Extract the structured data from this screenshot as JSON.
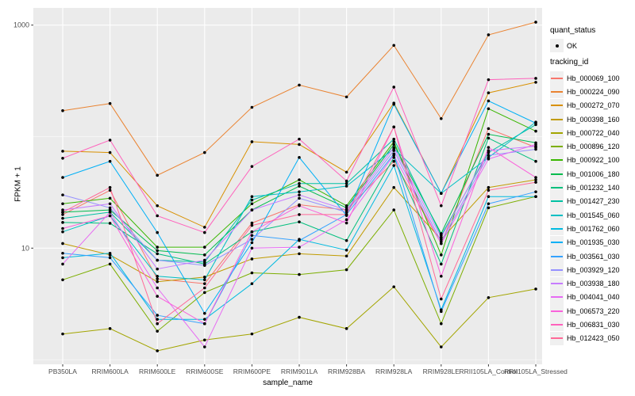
{
  "chart_data": {
    "type": "line",
    "title": "",
    "xlabel": "sample_name",
    "ylabel": "FPKM + 1",
    "y_scale": "log10",
    "ylim": [
      0.9,
      1430
    ],
    "y_ticks": [
      10,
      1000
    ],
    "y_tick_labels": [
      "10",
      "1000"
    ],
    "y_minor_gridlines": [
      1,
      100
    ],
    "grid": "on",
    "panel_background": "#EBEBEB",
    "gridline_color": "#FFFFFF",
    "point_color": "#000000",
    "categories": [
      "PB350LA",
      "RRIM600LA",
      "RRIM600LE",
      "RRIM600SE",
      "RRIM600PE",
      "RRIM901LA",
      "RRIM928BA",
      "RRIM928LA",
      "RRIM928LE",
      "RRII105LA_Control",
      "RRII105LA_Stressed"
    ],
    "series": [
      {
        "name": "Hb_000069_100",
        "color": "#F8766D",
        "values": [
          20,
          33,
          5.3,
          4.8,
          16.8,
          24.5,
          22,
          60,
          11,
          118,
          80
        ]
      },
      {
        "name": "Hb_000224_090",
        "color": "#EA8331",
        "values": [
          171,
          198,
          45,
          72,
          183,
          290,
          227,
          658,
          145,
          818,
          1063
        ]
      },
      {
        "name": "Hb_000272_070",
        "color": "#D89000",
        "values": [
          74,
          72,
          24,
          15.4,
          90,
          85,
          48,
          200,
          31,
          247,
          307
        ]
      },
      {
        "name": "Hb_000398_160",
        "color": "#C09B00",
        "values": [
          11,
          8.7,
          5.0,
          5.5,
          8.0,
          8.9,
          8.5,
          35,
          12,
          35,
          41
        ]
      },
      {
        "name": "Hb_000722_040",
        "color": "#A3A500",
        "values": [
          1.7,
          1.9,
          1.2,
          1.5,
          1.7,
          2.4,
          1.9,
          4.5,
          1.3,
          3.6,
          4.3
        ]
      },
      {
        "name": "Hb_000896_120",
        "color": "#7CAE00",
        "values": [
          5.2,
          7.2,
          1.8,
          4.0,
          6.0,
          5.8,
          6.4,
          22,
          2.1,
          23,
          29
        ]
      },
      {
        "name": "Hb_000922_100",
        "color": "#39B600",
        "values": [
          25,
          28,
          10.2,
          10.2,
          25,
          41,
          24,
          90,
          8.7,
          178,
          112
        ]
      },
      {
        "name": "Hb_001006_180",
        "color": "#00BB4E",
        "values": [
          21,
          22,
          9.5,
          8.7,
          22,
          36,
          23,
          85,
          13.5,
          105,
          88
        ]
      },
      {
        "name": "Hb_001232_140",
        "color": "#00BF7D",
        "values": [
          17,
          16.7,
          8.9,
          7.2,
          14,
          17.2,
          11.7,
          65,
          7.2,
          97,
          60
        ]
      },
      {
        "name": "Hb_001427_230",
        "color": "#00C1A3",
        "values": [
          18.5,
          21,
          7.8,
          7.5,
          27,
          38,
          38,
          95,
          13,
          72,
          128
        ]
      },
      {
        "name": "Hb_001545_060",
        "color": "#00BFC4",
        "values": [
          14,
          19.5,
          5.6,
          5.2,
          29,
          32,
          36,
          78,
          31,
          65,
          135
        ]
      },
      {
        "name": "Hb_001762_060",
        "color": "#00BAE0",
        "values": [
          8.2,
          9,
          2.3,
          2.3,
          4.8,
          12,
          9.6,
          55,
          2.8,
          29,
          29
        ]
      },
      {
        "name": "Hb_001935_030",
        "color": "#00B0F6",
        "values": [
          43,
          60,
          13.8,
          2.6,
          11.2,
          65,
          19.6,
          195,
          31,
          209,
          132
        ]
      },
      {
        "name": "Hb_003561_030",
        "color": "#35A2FF",
        "values": [
          9,
          8.2,
          2.5,
          2.1,
          13,
          11.7,
          20,
          70,
          2.7,
          25,
          32
        ]
      },
      {
        "name": "Hb_003929_120",
        "color": "#9590FF",
        "values": [
          30,
          23,
          7.8,
          7.0,
          12,
          28,
          21,
          75,
          11.5,
          68,
          77
        ]
      },
      {
        "name": "Hb_003938_180",
        "color": "#C77CFF",
        "values": [
          22,
          25,
          6.5,
          7.8,
          22,
          30,
          22,
          80,
          12.5,
          75,
          82
        ]
      },
      {
        "name": "Hb_004041_040",
        "color": "#E76BF3",
        "values": [
          7.2,
          21,
          4.4,
          1.3,
          10,
          10.2,
          18,
          68,
          11,
          63,
          85
        ]
      },
      {
        "name": "Hb_006573_220",
        "color": "#FA62DB",
        "values": [
          15,
          19.5,
          3.7,
          2.1,
          14,
          24,
          16.8,
          122,
          5.6,
          80,
          43
        ]
      },
      {
        "name": "Hb_006831_030",
        "color": "#FF62BC",
        "values": [
          64,
          93,
          19.5,
          13.8,
          54,
          95,
          40,
          278,
          24,
          324,
          333
        ]
      },
      {
        "name": "Hb_012423_050",
        "color": "#FF6A98",
        "values": [
          21,
          35,
          2.1,
          4.4,
          16,
          20,
          20,
          122,
          3.5,
          33,
          39
        ]
      }
    ],
    "legend": {
      "position": "right",
      "quant_status": {
        "title": "quant_status",
        "items": [
          {
            "label": "OK"
          }
        ]
      },
      "tracking_id": {
        "title": "tracking_id"
      }
    }
  }
}
